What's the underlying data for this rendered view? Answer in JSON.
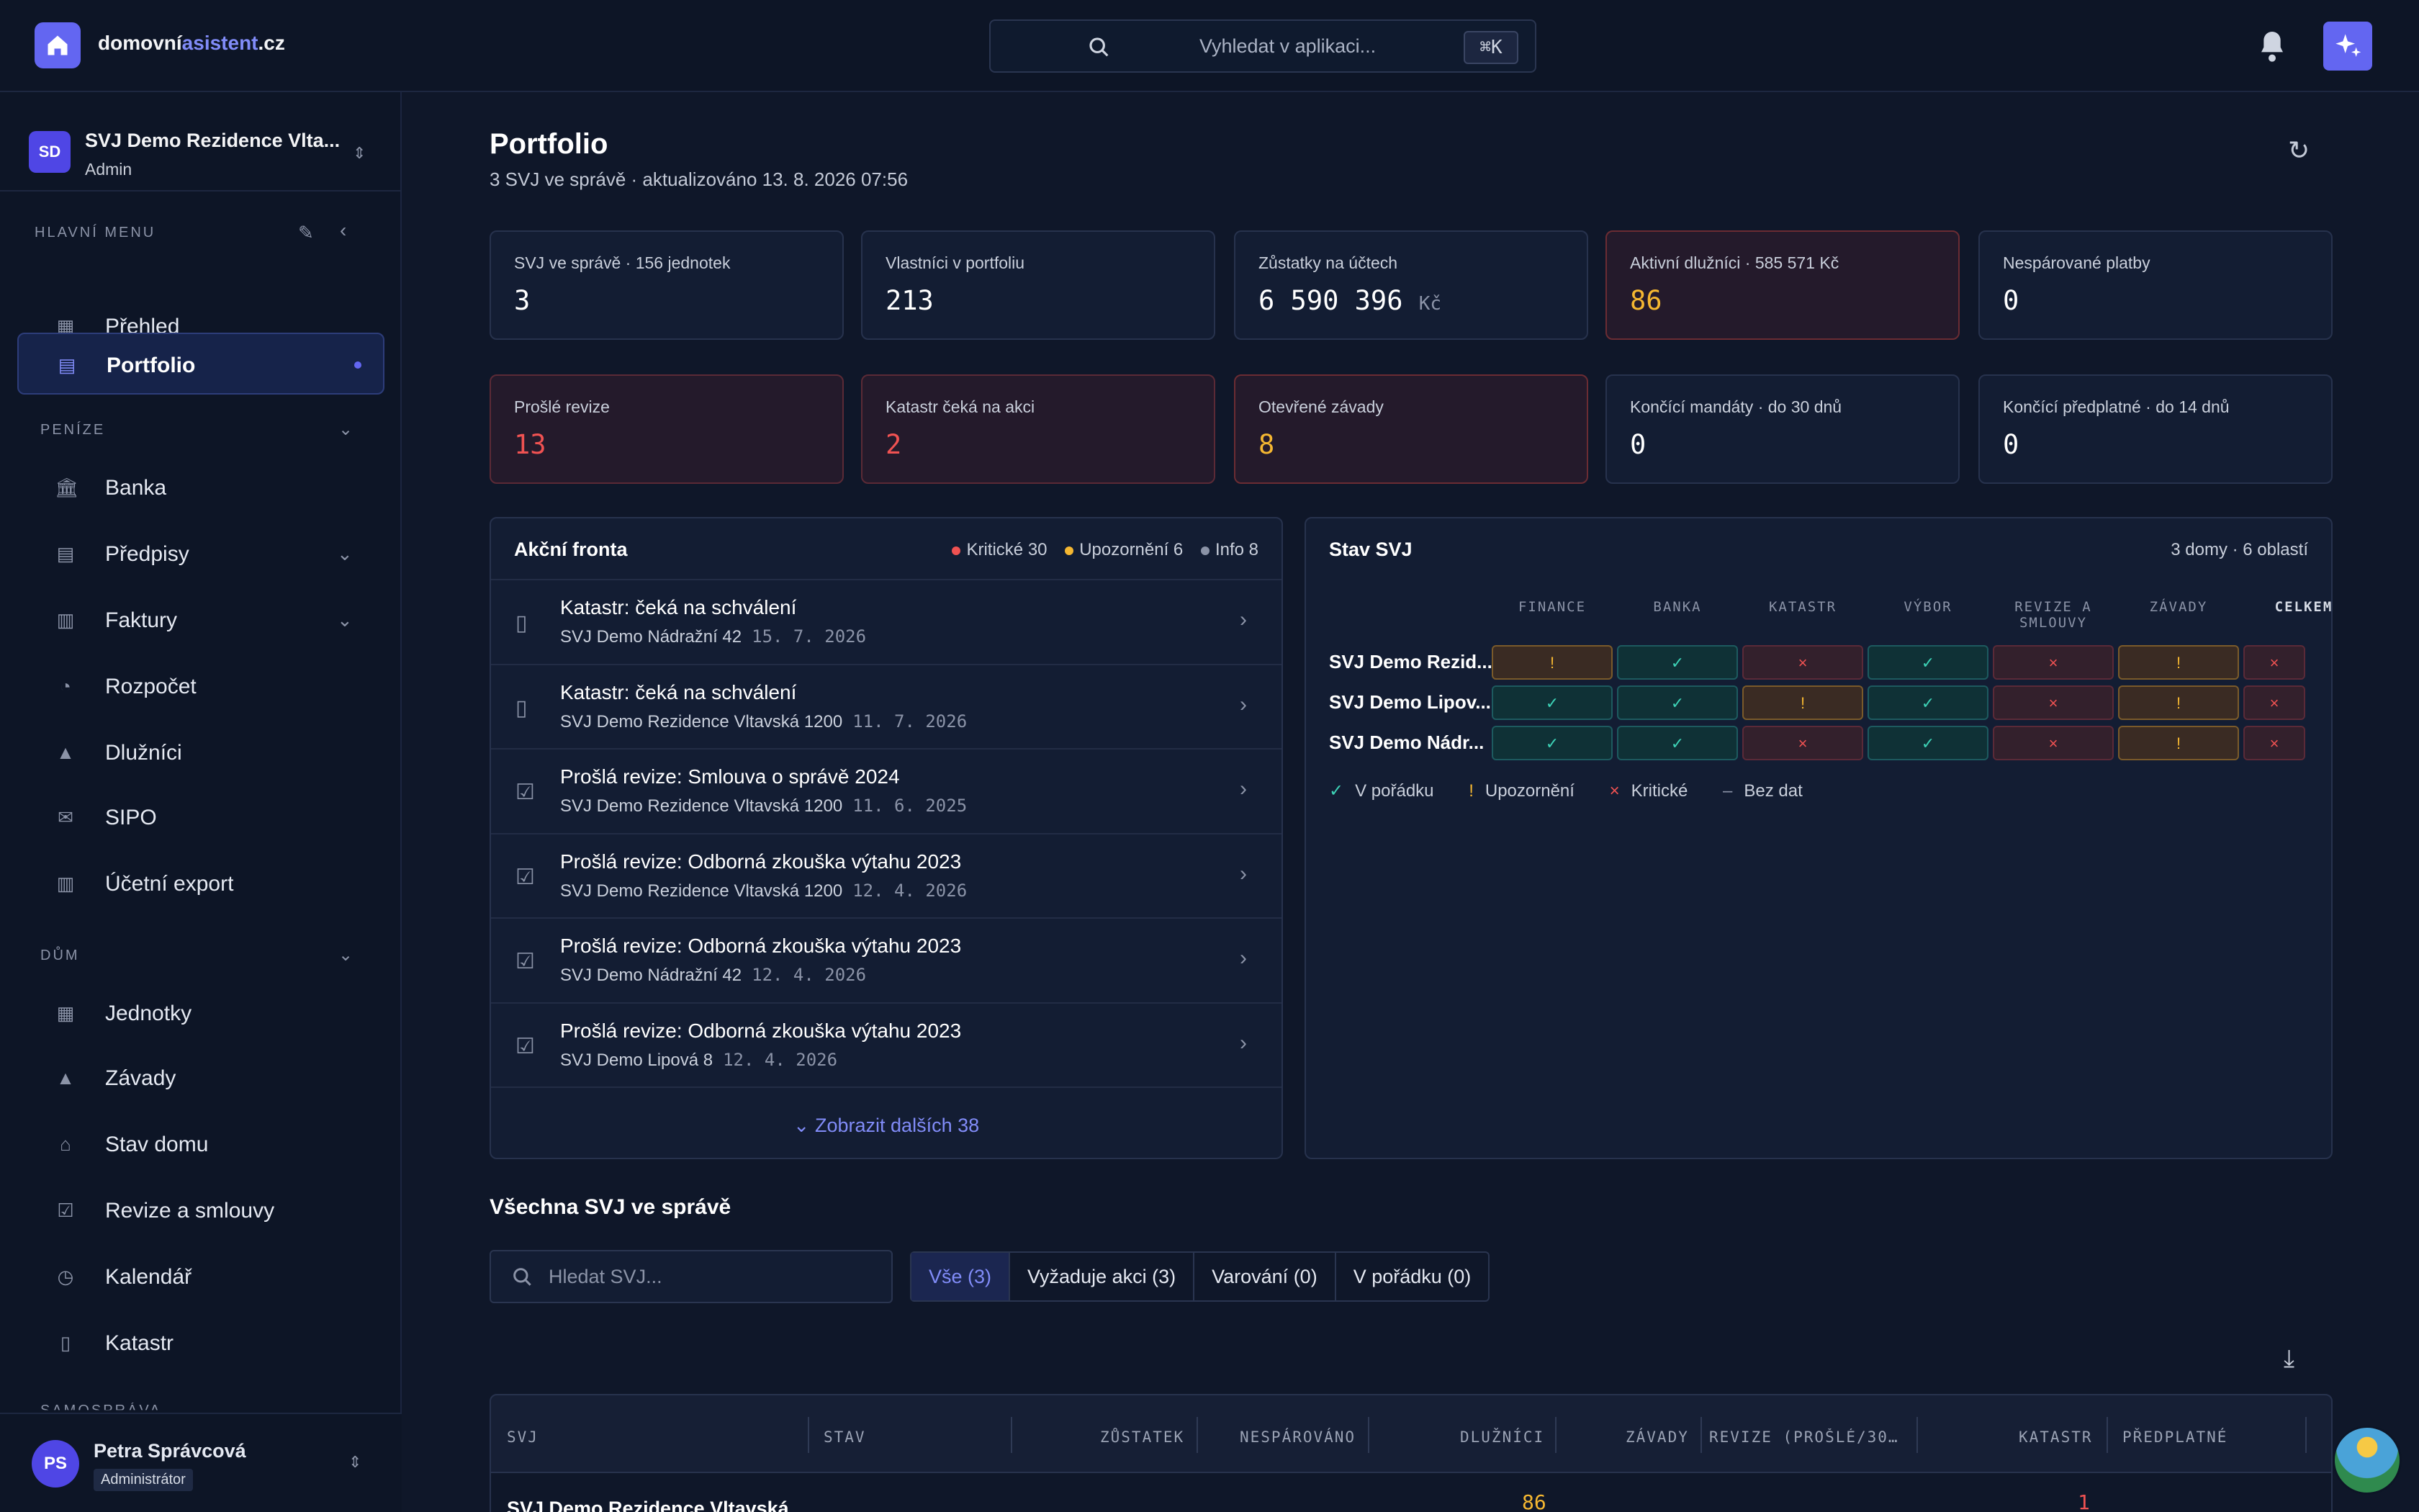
{
  "header": {
    "brand_part1": "domovní",
    "brand_part2": "asistent",
    "brand_part3": ".cz",
    "search_placeholder": "Vyhledat v aplikaci...",
    "search_shortcut": "⌘K"
  },
  "sidebar": {
    "org_initials": "SD",
    "org_name": "SVJ Demo Rezidence Vlta...",
    "org_role": "Admin",
    "main_menu_label": "HLAVNÍ MENU",
    "section_money": "PENÍZE",
    "section_house": "DŮM",
    "section_self": "SAMOSPRÁVA",
    "items": [
      {
        "label": "Přehled"
      },
      {
        "label": "Portfolio"
      },
      {
        "label": "Banka"
      },
      {
        "label": "Předpisy"
      },
      {
        "label": "Faktury"
      },
      {
        "label": "Rozpočet"
      },
      {
        "label": "Dlužníci"
      },
      {
        "label": "SIPO"
      },
      {
        "label": "Účetní export"
      },
      {
        "label": "Jednotky"
      },
      {
        "label": "Závady"
      },
      {
        "label": "Stav domu"
      },
      {
        "label": "Revize a smlouvy"
      },
      {
        "label": "Kalendář"
      },
      {
        "label": "Katastr"
      }
    ],
    "user_initials": "PS",
    "user_name": "Petra Správcová",
    "user_role": "Administrátor"
  },
  "page": {
    "title": "Portfolio",
    "subtitle": "3 SVJ ve správě · aktualizováno 13. 8. 2026 07:56"
  },
  "kpis": [
    {
      "label": "SVJ ve správě · 156 jednotek",
      "value": "3"
    },
    {
      "label": "Vlastníci v portfoliu",
      "value": "213"
    },
    {
      "label": "Zůstatky na účtech",
      "value": "6 590 396",
      "unit": "Kč"
    },
    {
      "label": "Aktivní dlužníci · 585 571 Kč",
      "value": "86"
    },
    {
      "label": "Nespárované platby",
      "value": "0"
    },
    {
      "label": "Prošlé revize",
      "value": "13"
    },
    {
      "label": "Katastr čeká na akci",
      "value": "2"
    },
    {
      "label": "Otevřené závady",
      "value": "8"
    },
    {
      "label": "Končící mandáty · do 30 dnů",
      "value": "0"
    },
    {
      "label": "Končící předplatné · do 14 dnů",
      "value": "0"
    }
  ],
  "action_queue": {
    "title": "Akční fronta",
    "legend_critical": "Kritické 30",
    "legend_warning": "Upozornění 6",
    "legend_info": "Info 8",
    "items": [
      {
        "title": "Katastr: čeká na schválení",
        "sub": "SVJ Demo Nádražní 42",
        "date": "15. 7. 2026",
        "icon": "map-icon"
      },
      {
        "title": "Katastr: čeká na schválení",
        "sub": "SVJ Demo Rezidence Vltavská 1200",
        "date": "11. 7. 2026",
        "icon": "map-icon"
      },
      {
        "title": "Prošlá revize: Smlouva o správě 2024",
        "sub": "SVJ Demo Rezidence Vltavská 1200",
        "date": "11. 6. 2025",
        "icon": "checklist-icon"
      },
      {
        "title": "Prošlá revize: Odborná zkouška výtahu 2023",
        "sub": "SVJ Demo Rezidence Vltavská 1200",
        "date": "12. 4. 2026",
        "icon": "checklist-icon"
      },
      {
        "title": "Prošlá revize: Odborná zkouška výtahu 2023",
        "sub": "SVJ Demo Nádražní 42",
        "date": "12. 4. 2026",
        "icon": "checklist-icon"
      },
      {
        "title": "Prošlá revize: Odborná zkouška výtahu 2023",
        "sub": "SVJ Demo Lipová 8",
        "date": "12. 4. 2026",
        "icon": "checklist-icon"
      }
    ],
    "more_label": "Zobrazit dalších 38"
  },
  "status": {
    "title": "Stav SVJ",
    "summary": "3 domy · 6 oblastí",
    "columns": [
      "FINANCE",
      "BANKA",
      "KATASTR",
      "VÝBOR",
      "REVIZE A SMLOUVY",
      "ZÁVADY",
      "CELKEM"
    ],
    "rows": [
      {
        "name": "SVJ Demo Rezid...",
        "cells": [
          "warn",
          "ok",
          "crit",
          "ok",
          "crit",
          "warn",
          "crit"
        ]
      },
      {
        "name": "SVJ Demo Lipov...",
        "cells": [
          "ok",
          "ok",
          "warn",
          "ok",
          "crit",
          "warn",
          "crit"
        ]
      },
      {
        "name": "SVJ Demo Nádr...",
        "cells": [
          "ok",
          "ok",
          "crit",
          "ok",
          "crit",
          "warn",
          "crit"
        ]
      }
    ],
    "symbols": {
      "ok": "✓",
      "warn": "!",
      "crit": "×",
      "none": "–"
    },
    "legend": {
      "ok": "V pořádku",
      "warn": "Upozornění",
      "crit": "Kritické",
      "none": "Bez dat"
    }
  },
  "all_svj": {
    "title": "Všechna SVJ ve správě",
    "search_placeholder": "Hledat SVJ...",
    "tabs": [
      "Vše (3)",
      "Vyžaduje akci (3)",
      "Varování (0)",
      "V pořádku (0)"
    ],
    "columns": [
      "SVJ",
      "STAV",
      "ZŮSTATEK",
      "NESPÁROVÁNO",
      "DLUŽNÍCI",
      "ZÁVADY",
      "REVIZE (PROŠLÉ/30…",
      "KATASTR",
      "PŘEDPLATNÉ"
    ],
    "first_row_name": "SVJ Demo Rezidence Vltavská",
    "first_row_debtors": "86",
    "first_row_cadastre": "1"
  },
  "colors": {
    "accent": "#6366f1",
    "critical": "#f05252",
    "warning": "#f5b731",
    "ok": "#3dd2b6"
  }
}
